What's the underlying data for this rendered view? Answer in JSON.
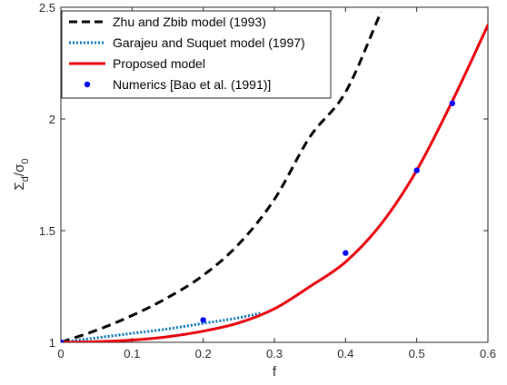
{
  "chart_data": {
    "type": "line",
    "xlabel": "f",
    "ylabel": {
      "base1": "Σ",
      "sub1": "d",
      "slash": "/",
      "base2": "σ",
      "sub2": "0"
    },
    "xlim": [
      0,
      0.6
    ],
    "ylim": [
      1,
      2.5
    ],
    "xticks": [
      0,
      0.1,
      0.2,
      0.3,
      0.4,
      0.5,
      0.6
    ],
    "xtick_labels": [
      "0",
      "0.1",
      "0.2",
      "0.3",
      "0.4",
      "0.5",
      "0.6"
    ],
    "yticks": [
      1,
      1.5,
      2,
      2.5
    ],
    "ytick_labels": [
      "1",
      "1.5",
      "2",
      "2.5"
    ],
    "grid": false,
    "legend_position": "top-left",
    "series": [
      {
        "name": "Zhu and Zbib model (1993)",
        "style": "dashed",
        "color": "#000000",
        "x": [
          0,
          0.05,
          0.1,
          0.15,
          0.2,
          0.25,
          0.3,
          0.35,
          0.4,
          0.45
        ],
        "y": [
          1.0,
          1.054,
          1.12,
          1.2,
          1.3,
          1.44,
          1.64,
          1.92,
          2.12,
          2.48
        ]
      },
      {
        "name": "Garajeu and Suquet model (1997)",
        "style": "dotted",
        "color": "#0072BD",
        "x": [
          0,
          0.05,
          0.1,
          0.15,
          0.2,
          0.25,
          0.28
        ],
        "y": [
          1.0,
          1.02,
          1.04,
          1.06,
          1.085,
          1.11,
          1.13
        ]
      },
      {
        "name": "Proposed model",
        "style": "solid",
        "color": "#E8000B",
        "x": [
          0,
          0.05,
          0.1,
          0.15,
          0.2,
          0.25,
          0.3,
          0.35,
          0.4,
          0.45,
          0.5,
          0.55,
          0.6
        ],
        "y": [
          1.0,
          1.003,
          1.01,
          1.025,
          1.05,
          1.087,
          1.15,
          1.25,
          1.36,
          1.53,
          1.77,
          2.08,
          2.42
        ]
      },
      {
        "name": "Numerics [Bao et al. (1991)]",
        "style": "markers",
        "color": "#0000FF",
        "x": [
          0,
          0.2,
          0.4,
          0.5,
          0.55
        ],
        "y": [
          1.0,
          1.1,
          1.4,
          1.77,
          2.07
        ]
      }
    ]
  }
}
